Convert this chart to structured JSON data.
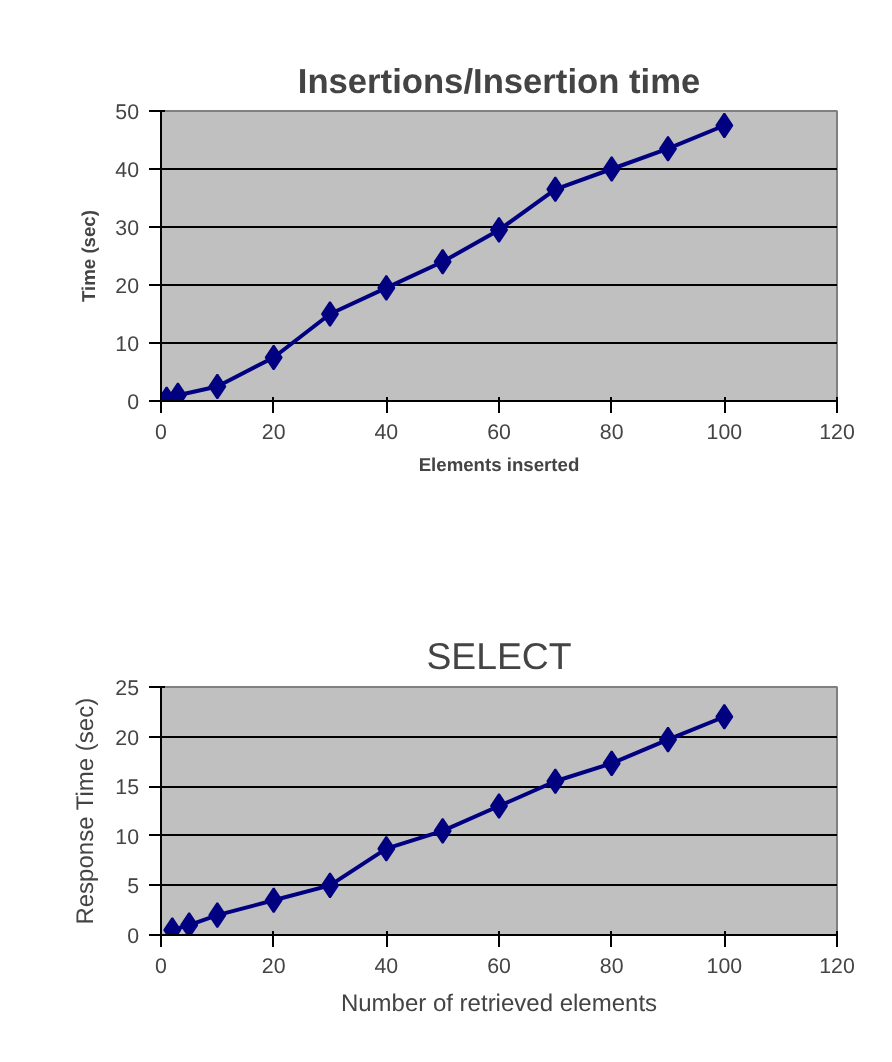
{
  "chart_data": [
    {
      "type": "line",
      "title": "Insertions/Insertion time",
      "xlabel": "Elements inserted",
      "ylabel": "Time (sec)",
      "x": [
        1,
        3,
        10,
        20,
        30,
        40,
        50,
        60,
        70,
        80,
        90,
        100
      ],
      "series": [
        {
          "color": "#000080",
          "values": [
            0.3,
            1,
            2.5,
            7.5,
            15,
            19.5,
            24,
            29.5,
            36.5,
            40,
            43.5,
            47.5
          ]
        }
      ],
      "xlim": [
        0,
        120
      ],
      "xticks": [
        0,
        20,
        40,
        60,
        80,
        100,
        120
      ],
      "ylim": [
        0,
        50
      ],
      "yticks": [
        0,
        10,
        20,
        30,
        40,
        50
      ],
      "grid": "y",
      "marker": "diamond"
    },
    {
      "type": "line",
      "title": "SELECT",
      "xlabel": "Number of retrieved elements",
      "ylabel": "Response Time (sec)",
      "x": [
        2,
        5,
        10,
        20,
        30,
        40,
        50,
        60,
        70,
        80,
        90,
        100
      ],
      "series": [
        {
          "color": "#000080",
          "values": [
            0.5,
            1,
            2,
            3.5,
            5,
            8.7,
            10.5,
            13,
            15.5,
            17.3,
            19.7,
            22
          ]
        }
      ],
      "xlim": [
        0,
        120
      ],
      "xticks": [
        0,
        20,
        40,
        60,
        80,
        100,
        120
      ],
      "ylim": [
        0,
        25
      ],
      "yticks": [
        0,
        5,
        10,
        15,
        20,
        25
      ],
      "grid": "y",
      "marker": "diamond"
    }
  ]
}
